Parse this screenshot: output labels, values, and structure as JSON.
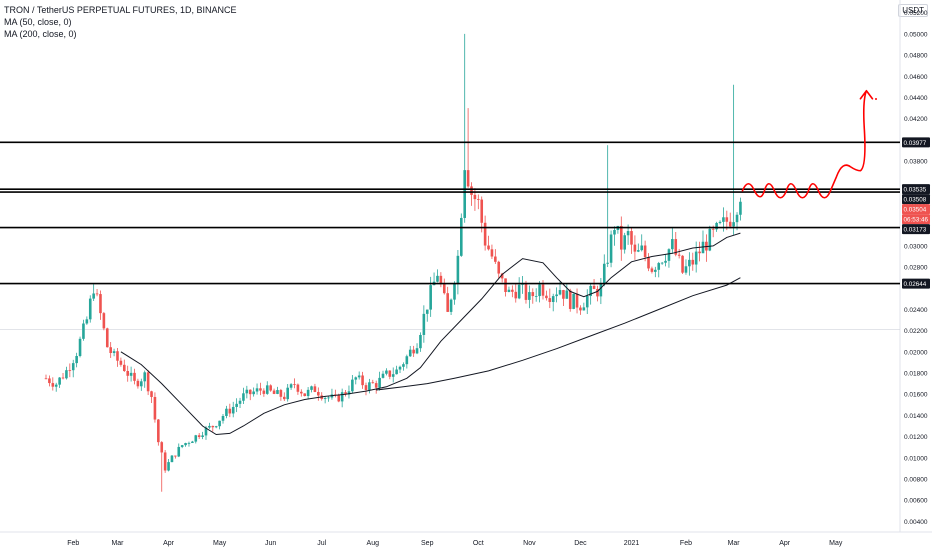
{
  "header": {
    "symbol_line": "TRON / TetherUS PERPETUAL FUTURES, 1D, BINANCE",
    "ma50_label": "MA (50, close, 0)",
    "ma200_label": "MA (200, close, 0)",
    "currency": "USDT"
  },
  "colors": {
    "up": "#26a69a",
    "down": "#ef5350",
    "ma": "#131722",
    "level_line": "#000000",
    "drawing": "#ff0000",
    "grid": "#f0f3fa",
    "axis_text": "#131722"
  },
  "chart_data": {
    "type": "candlestick",
    "title": "TRON / TetherUS PERPETUAL FUTURES, 1D, BINANCE",
    "y_axis": {
      "ylim": [
        0.003,
        0.0532
      ],
      "ticks": [
        "0.05200",
        "0.05000",
        "0.04800",
        "0.04600",
        "0.04400",
        "0.04200",
        "0.03800",
        "0.03400",
        "0.03000",
        "0.02800",
        "0.02400",
        "0.02200",
        "0.02000",
        "0.01800",
        "0.01600",
        "0.01400",
        "0.01200",
        "0.01000",
        "0.00800",
        "0.00600",
        "0.00400"
      ],
      "position": "right"
    },
    "x_axis": {
      "labels": [
        "Feb",
        "Mar",
        "Apr",
        "May",
        "Jun",
        "Jul",
        "Aug",
        "Sep",
        "Oct",
        "Nov",
        "Dec",
        "2021",
        "Feb",
        "Mar",
        "Apr",
        "May"
      ]
    },
    "price_labels": [
      {
        "text": "0.03977",
        "value": 0.03977,
        "style": "dark"
      },
      {
        "text": "0.03535",
        "value": 0.03535,
        "style": "dark"
      },
      {
        "text": "0.03508",
        "value": 0.03508,
        "style": "dark"
      },
      {
        "text": "0.03504",
        "value": 0.03504,
        "style": "red"
      },
      {
        "text": "06:53:46",
        "value": 0.03425,
        "style": "red"
      },
      {
        "text": "0.03173",
        "value": 0.03173,
        "style": "dark"
      },
      {
        "text": "0.02644",
        "value": 0.02644,
        "style": "dark"
      }
    ],
    "horizontal_levels": [
      0.03977,
      0.03535,
      0.03508,
      0.03173,
      0.02644
    ],
    "current_price": 0.03504,
    "price_path": [
      [
        0,
        0.0175
      ],
      [
        3,
        0.017
      ],
      [
        6,
        0.0182
      ],
      [
        9,
        0.02
      ],
      [
        12,
        0.023
      ],
      [
        14,
        0.0262
      ],
      [
        16,
        0.0235
      ],
      [
        18,
        0.0205
      ],
      [
        20,
        0.0195
      ],
      [
        23,
        0.0185
      ],
      [
        26,
        0.017
      ],
      [
        29,
        0.0178
      ],
      [
        31,
        0.0158
      ],
      [
        33,
        0.0115
      ],
      [
        35,
        0.009
      ],
      [
        37,
        0.01
      ],
      [
        40,
        0.0112
      ],
      [
        43,
        0.0118
      ],
      [
        46,
        0.0125
      ],
      [
        49,
        0.013
      ],
      [
        52,
        0.014
      ],
      [
        55,
        0.0148
      ],
      [
        58,
        0.0158
      ],
      [
        61,
        0.0162
      ],
      [
        64,
        0.0165
      ],
      [
        67,
        0.016
      ],
      [
        70,
        0.0158
      ],
      [
        73,
        0.017
      ],
      [
        76,
        0.016
      ],
      [
        79,
        0.0165
      ],
      [
        82,
        0.0158
      ],
      [
        85,
        0.0155
      ],
      [
        88,
        0.0162
      ],
      [
        91,
        0.0175
      ],
      [
        94,
        0.0168
      ],
      [
        97,
        0.017
      ],
      [
        100,
        0.0178
      ],
      [
        103,
        0.0182
      ],
      [
        106,
        0.0195
      ],
      [
        109,
        0.021
      ],
      [
        112,
        0.0245
      ],
      [
        115,
        0.0275
      ],
      [
        118,
        0.0235
      ],
      [
        121,
        0.029
      ],
      [
        123,
        0.038
      ],
      [
        125,
        0.035
      ],
      [
        127,
        0.034
      ],
      [
        129,
        0.0305
      ],
      [
        131,
        0.029
      ],
      [
        133,
        0.027
      ],
      [
        136,
        0.0255
      ],
      [
        139,
        0.026
      ],
      [
        142,
        0.025
      ],
      [
        145,
        0.0262
      ],
      [
        148,
        0.0255
      ],
      [
        151,
        0.026
      ],
      [
        154,
        0.0248
      ],
      [
        157,
        0.0245
      ],
      [
        160,
        0.0255
      ],
      [
        163,
        0.026
      ],
      [
        165,
        0.029
      ],
      [
        167,
        0.032
      ],
      [
        169,
        0.03
      ],
      [
        171,
        0.031
      ],
      [
        173,
        0.029
      ],
      [
        175,
        0.0295
      ],
      [
        178,
        0.028
      ],
      [
        181,
        0.029
      ],
      [
        184,
        0.03
      ],
      [
        187,
        0.0275
      ],
      [
        190,
        0.0285
      ],
      [
        193,
        0.03
      ],
      [
        196,
        0.031
      ],
      [
        199,
        0.032
      ],
      [
        202,
        0.033
      ],
      [
        204,
        0.035
      ]
    ],
    "spikes": [
      {
        "day": 123,
        "high": 0.05
      },
      {
        "day": 124,
        "high": 0.043
      },
      {
        "day": 165,
        "high": 0.0395
      },
      {
        "day": 202,
        "high": 0.0452
      },
      {
        "day": 34,
        "low": 0.0068
      }
    ],
    "x_range": [
      0,
      245
    ],
    "date_ticks_day": [
      8,
      21,
      36,
      51,
      66,
      81,
      96,
      112,
      127,
      142,
      157,
      172,
      188,
      202,
      217,
      232
    ],
    "ma50": [
      [
        22,
        0.02
      ],
      [
        28,
        0.0188
      ],
      [
        34,
        0.017
      ],
      [
        40,
        0.015
      ],
      [
        46,
        0.013
      ],
      [
        50,
        0.0122
      ],
      [
        54,
        0.0123
      ],
      [
        58,
        0.013
      ],
      [
        64,
        0.0142
      ],
      [
        70,
        0.015
      ],
      [
        76,
        0.0155
      ],
      [
        82,
        0.0158
      ],
      [
        88,
        0.016
      ],
      [
        94,
        0.0163
      ],
      [
        100,
        0.0167
      ],
      [
        106,
        0.0175
      ],
      [
        110,
        0.0185
      ],
      [
        116,
        0.021
      ],
      [
        122,
        0.023
      ],
      [
        128,
        0.025
      ],
      [
        134,
        0.0273
      ],
      [
        140,
        0.0288
      ],
      [
        146,
        0.0284
      ],
      [
        150,
        0.027
      ],
      [
        154,
        0.0257
      ],
      [
        158,
        0.0252
      ],
      [
        162,
        0.0257
      ],
      [
        166,
        0.027
      ],
      [
        172,
        0.0285
      ],
      [
        178,
        0.029
      ],
      [
        184,
        0.0293
      ],
      [
        190,
        0.0298
      ],
      [
        196,
        0.03
      ],
      [
        200,
        0.0308
      ],
      [
        204,
        0.0312
      ]
    ],
    "ma200": [
      [
        97,
        0.0164
      ],
      [
        105,
        0.0167
      ],
      [
        112,
        0.017
      ],
      [
        120,
        0.0175
      ],
      [
        130,
        0.0182
      ],
      [
        140,
        0.0192
      ],
      [
        150,
        0.0203
      ],
      [
        160,
        0.0215
      ],
      [
        170,
        0.0227
      ],
      [
        180,
        0.024
      ],
      [
        190,
        0.0253
      ],
      [
        200,
        0.0263
      ],
      [
        204,
        0.027
      ]
    ]
  }
}
